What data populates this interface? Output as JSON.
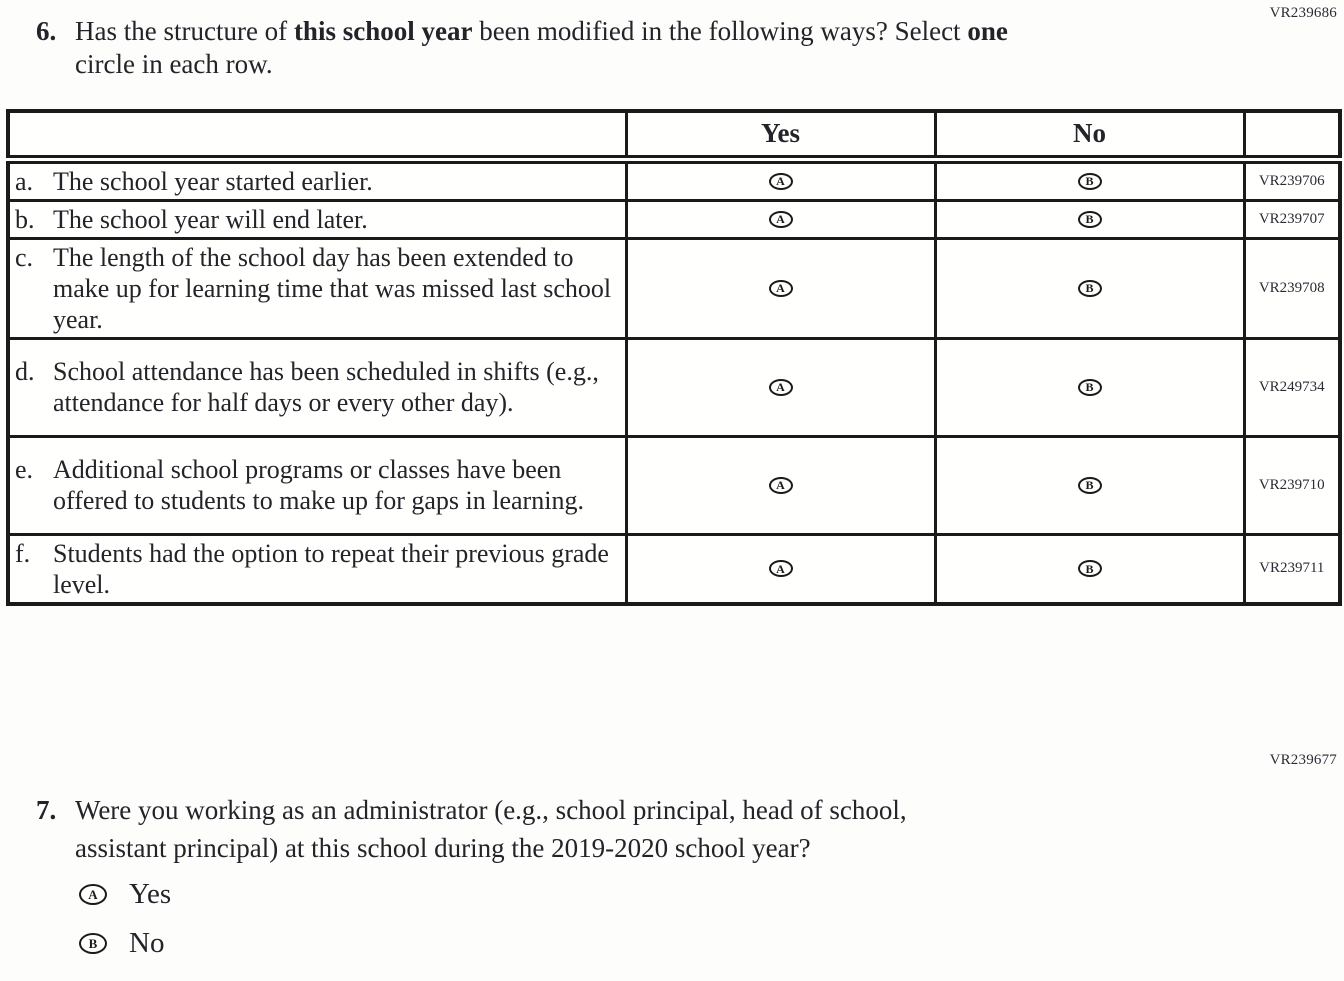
{
  "page": {
    "vr_top": "VR239686",
    "vr_mid": "VR239677"
  },
  "q6": {
    "number": "6.",
    "line1_segments": [
      {
        "t": "Has the structure of "
      },
      {
        "t": "this school year",
        "b": true
      },
      {
        "t": " been modified in the following ways? Select "
      },
      {
        "t": "one",
        "b": true
      }
    ],
    "line2": "circle in each row.",
    "table": {
      "header": {
        "statement": "",
        "yes": "Yes",
        "no": "No",
        "code": ""
      },
      "rows": [
        {
          "letter": "a.",
          "text": "The school year started earlier.",
          "yes_option": "A",
          "no_option": "B",
          "code": "VR239706"
        },
        {
          "letter": "b.",
          "text": "The school year will end later.",
          "yes_option": "A",
          "no_option": "B",
          "code": "VR239707"
        },
        {
          "letter": "c.",
          "text": "The length of the school day has been extended to make up for learning time that was missed last school year.",
          "yes_option": "A",
          "no_option": "B",
          "code": "VR239708"
        },
        {
          "letter": "d.",
          "text": "School attendance has been scheduled in shifts (e.g., attendance for half days or every other day).",
          "yes_option": "A",
          "no_option": "B",
          "code": "VR249734"
        },
        {
          "letter": "e.",
          "text": "Additional school programs or classes have been offered to students to make up for gaps in learning.",
          "yes_option": "A",
          "no_option": "B",
          "code": "VR239710"
        },
        {
          "letter": "f.",
          "text": "Students had the option to repeat their previous grade level.",
          "yes_option": "A",
          "no_option": "B",
          "code": "VR239711"
        }
      ]
    }
  },
  "q7": {
    "number": "7.",
    "line1": "Were you working as an administrator (e.g., school principal, head of school,",
    "line2": "assistant principal) at this school during the 2019-2020 school year?",
    "options": [
      {
        "letter": "A",
        "label": "Yes"
      },
      {
        "letter": "B",
        "label": "No"
      }
    ]
  }
}
